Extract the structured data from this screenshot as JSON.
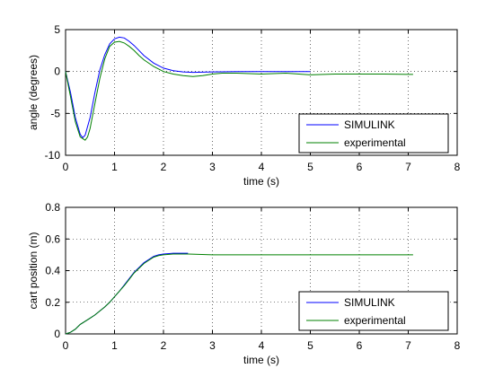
{
  "chart_data": [
    {
      "type": "line",
      "xlabel": "time (s)",
      "ylabel": "angle (degrees)",
      "xlim": [
        0,
        8
      ],
      "ylim": [
        -10,
        5
      ],
      "xticks": [
        0,
        1,
        2,
        3,
        4,
        5,
        6,
        7,
        8
      ],
      "yticks": [
        -10,
        -5,
        0,
        5
      ],
      "grid": true,
      "legend_position": "bottom-right",
      "series": [
        {
          "name": "SIMULINK",
          "color": "#0000ff",
          "x": [
            0,
            0.1,
            0.2,
            0.3,
            0.35,
            0.4,
            0.5,
            0.6,
            0.7,
            0.8,
            0.9,
            1.0,
            1.1,
            1.2,
            1.3,
            1.4,
            1.5,
            1.6,
            1.8,
            2.0,
            2.2,
            2.4,
            2.6,
            3.0,
            3.5,
            4.0,
            4.5,
            5.0
          ],
          "y": [
            0,
            -2.5,
            -5.5,
            -7.5,
            -7.9,
            -7.6,
            -5.5,
            -2.5,
            0.2,
            2.0,
            3.3,
            3.9,
            4.1,
            4.0,
            3.6,
            3.1,
            2.5,
            1.9,
            1.0,
            0.4,
            0.1,
            -0.05,
            -0.1,
            -0.05,
            0.0,
            0.0,
            0.0,
            0.0
          ]
        },
        {
          "name": "experimental",
          "color": "#008000",
          "x": [
            0,
            0.1,
            0.2,
            0.3,
            0.4,
            0.45,
            0.5,
            0.6,
            0.7,
            0.8,
            0.9,
            1.0,
            1.1,
            1.2,
            1.3,
            1.4,
            1.5,
            1.6,
            1.8,
            2.0,
            2.2,
            2.4,
            2.6,
            2.8,
            3.0,
            3.2,
            3.5,
            4.0,
            4.5,
            5.0,
            5.5,
            6.0,
            6.5,
            7.0,
            7.1
          ],
          "y": [
            0,
            -3.0,
            -6.0,
            -7.8,
            -8.2,
            -7.8,
            -6.8,
            -3.8,
            -0.8,
            1.5,
            3.0,
            3.5,
            3.6,
            3.4,
            3.0,
            2.5,
            1.9,
            1.4,
            0.6,
            0.0,
            -0.3,
            -0.5,
            -0.6,
            -0.5,
            -0.3,
            -0.2,
            -0.2,
            -0.3,
            -0.2,
            -0.4,
            -0.3,
            -0.3,
            -0.3,
            -0.35,
            -0.35
          ]
        }
      ]
    },
    {
      "type": "line",
      "xlabel": "time (s)",
      "ylabel": "cart position (m)",
      "xlim": [
        0,
        8
      ],
      "ylim": [
        0,
        0.8
      ],
      "xticks": [
        0,
        1,
        2,
        3,
        4,
        5,
        6,
        7,
        8
      ],
      "yticks": [
        0,
        0.2,
        0.4,
        0.6,
        0.8
      ],
      "grid": true,
      "legend_position": "bottom-right",
      "series": [
        {
          "name": "SIMULINK",
          "color": "#0000ff",
          "x": [
            0,
            0.1,
            0.2,
            0.3,
            0.4,
            0.5,
            0.6,
            0.7,
            0.8,
            0.9,
            1.0,
            1.1,
            1.2,
            1.3,
            1.4,
            1.5,
            1.6,
            1.7,
            1.8,
            1.9,
            2.0,
            2.2,
            2.5
          ],
          "y": [
            0,
            0.01,
            0.03,
            0.06,
            0.08,
            0.1,
            0.12,
            0.145,
            0.17,
            0.2,
            0.235,
            0.27,
            0.31,
            0.35,
            0.39,
            0.42,
            0.45,
            0.47,
            0.49,
            0.5,
            0.505,
            0.51,
            0.51
          ]
        },
        {
          "name": "experimental",
          "color": "#008000",
          "x": [
            0,
            0.1,
            0.2,
            0.3,
            0.4,
            0.5,
            0.6,
            0.7,
            0.8,
            0.9,
            1.0,
            1.1,
            1.2,
            1.3,
            1.4,
            1.5,
            1.6,
            1.7,
            1.8,
            1.9,
            2.0,
            2.2,
            2.5,
            3.0,
            4.0,
            5.0,
            6.0,
            7.0,
            7.1
          ],
          "y": [
            0,
            0.01,
            0.03,
            0.06,
            0.08,
            0.1,
            0.12,
            0.145,
            0.17,
            0.2,
            0.235,
            0.27,
            0.305,
            0.345,
            0.385,
            0.415,
            0.445,
            0.465,
            0.485,
            0.495,
            0.5,
            0.505,
            0.505,
            0.5,
            0.5,
            0.5,
            0.5,
            0.5,
            0.5
          ]
        }
      ]
    }
  ]
}
